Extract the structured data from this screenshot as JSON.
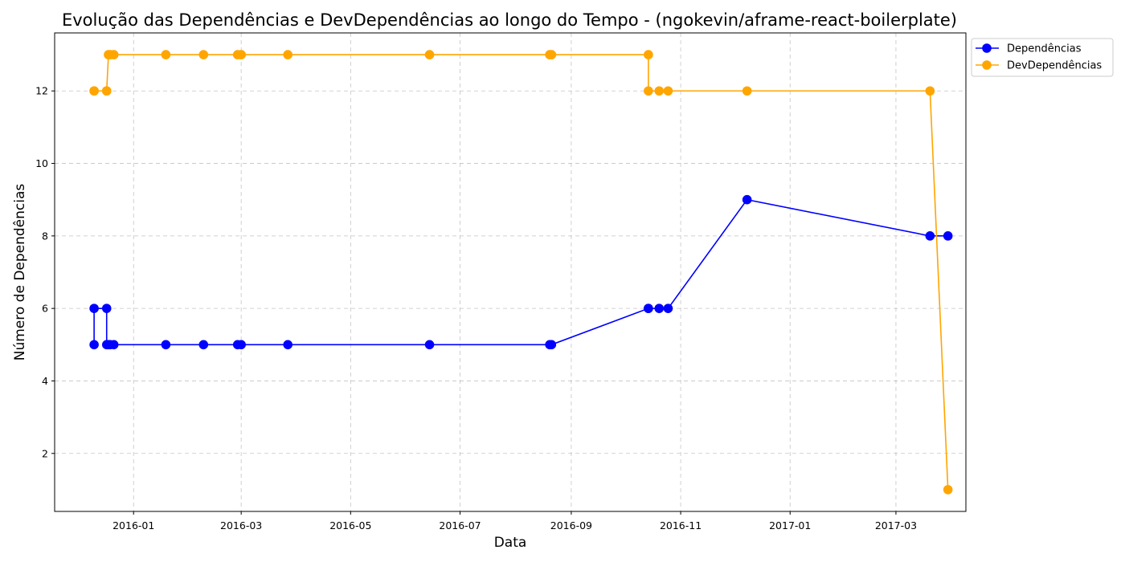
{
  "chart_data": {
    "type": "line",
    "title": "Evolução das Dependências e DevDependências ao longo do Tempo - (ngokevin/aframe-react-boilerplate)",
    "xlabel": "Data",
    "ylabel": "Número de Dependências",
    "x_ticks": [
      "2016-01",
      "2016-03",
      "2016-05",
      "2016-07",
      "2016-09",
      "2016-11",
      "2017-01",
      "2017-03"
    ],
    "y_ticks": [
      2,
      4,
      6,
      8,
      10,
      12
    ],
    "xlim": [
      "2015-11-18",
      "2017-04-09"
    ],
    "ylim": [
      0.4,
      13.6
    ],
    "grid": true,
    "legend_position": "outside-top-right",
    "x": [
      "2015-12-10",
      "2015-12-10",
      "2015-12-17",
      "2015-12-17",
      "2015-12-18",
      "2015-12-19",
      "2015-12-21",
      "2016-01-19",
      "2016-02-09",
      "2016-02-28",
      "2016-03-01",
      "2016-03-27",
      "2016-06-14",
      "2016-08-20",
      "2016-08-21",
      "2016-10-14",
      "2016-10-14",
      "2016-10-20",
      "2016-10-25",
      "2016-12-08",
      "2017-03-20",
      "2017-03-30"
    ],
    "series": [
      {
        "name": "Dependências",
        "color": "#0000ff",
        "values": [
          5,
          6,
          6,
          5,
          5,
          5,
          5,
          5,
          5,
          5,
          5,
          5,
          5,
          5,
          5,
          6,
          6,
          6,
          6,
          9,
          8,
          8
        ]
      },
      {
        "name": "DevDependências",
        "color": "#ffa500",
        "values": [
          12,
          12,
          12,
          12,
          13,
          13,
          13,
          13,
          13,
          13,
          13,
          13,
          13,
          13,
          13,
          13,
          12,
          12,
          12,
          12,
          12,
          1
        ]
      }
    ]
  }
}
